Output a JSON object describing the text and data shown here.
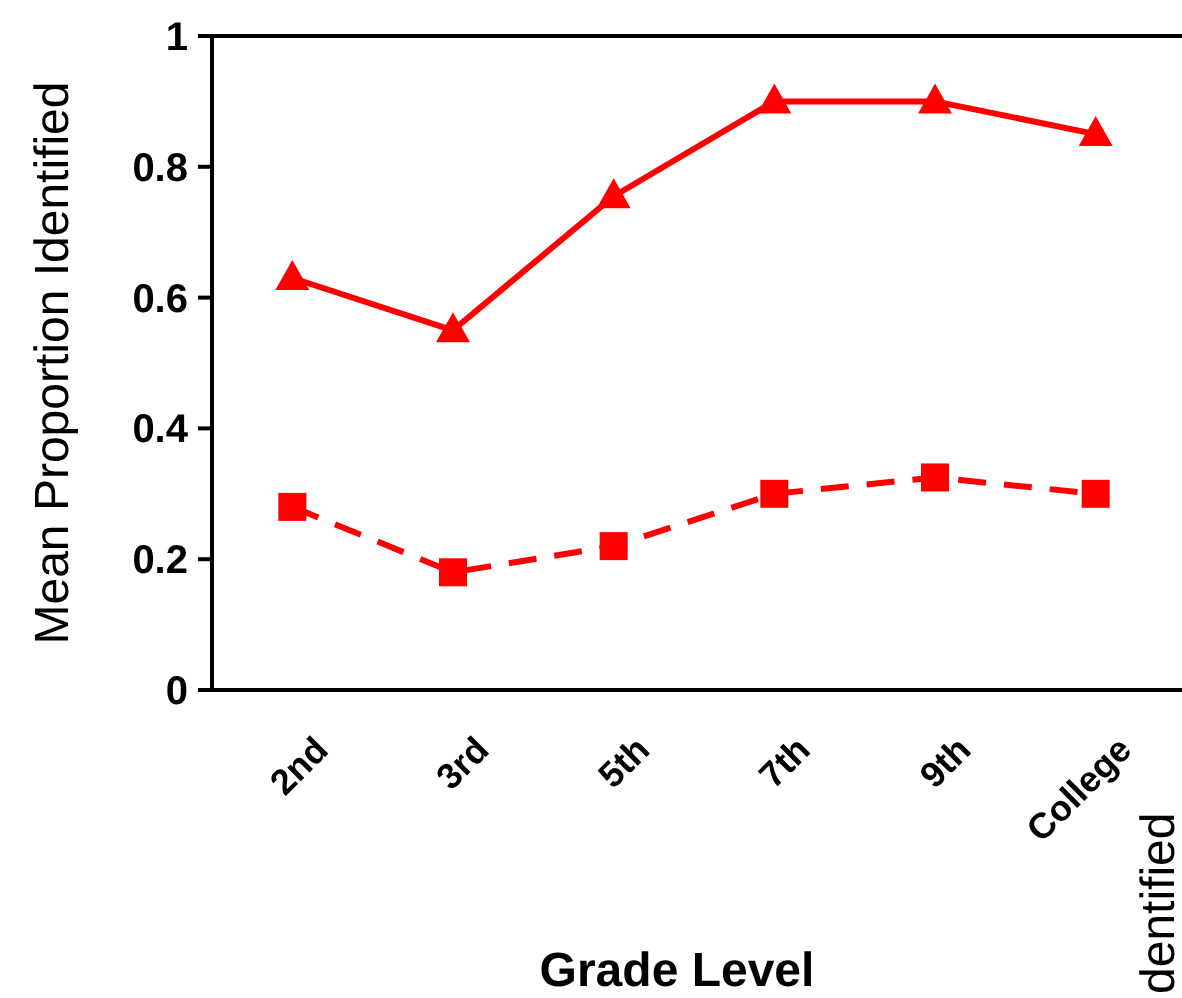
{
  "chart_data": {
    "type": "line",
    "xlabel": "Grade Level",
    "ylabel": "Mean Proportion Identified",
    "categories": [
      "2nd",
      "3rd",
      "5th",
      "7th",
      "9th",
      "College"
    ],
    "series": [
      {
        "color": "#ff0000",
        "values": [
          0.63,
          0.55,
          0.755,
          0.9,
          0.9,
          0.85
        ],
        "marker": "triangle",
        "line_style": "solid"
      },
      {
        "color": "#ff0000",
        "values": [
          0.28,
          0.18,
          0.22,
          0.3,
          0.325,
          0.3
        ],
        "marker": "square",
        "line_style": "dashed"
      }
    ],
    "ylim": [
      0,
      1
    ],
    "yticks": [
      0,
      0.2,
      0.4,
      0.6,
      0.8,
      1
    ],
    "grid": false,
    "annotations": [
      "dentified"
    ]
  }
}
